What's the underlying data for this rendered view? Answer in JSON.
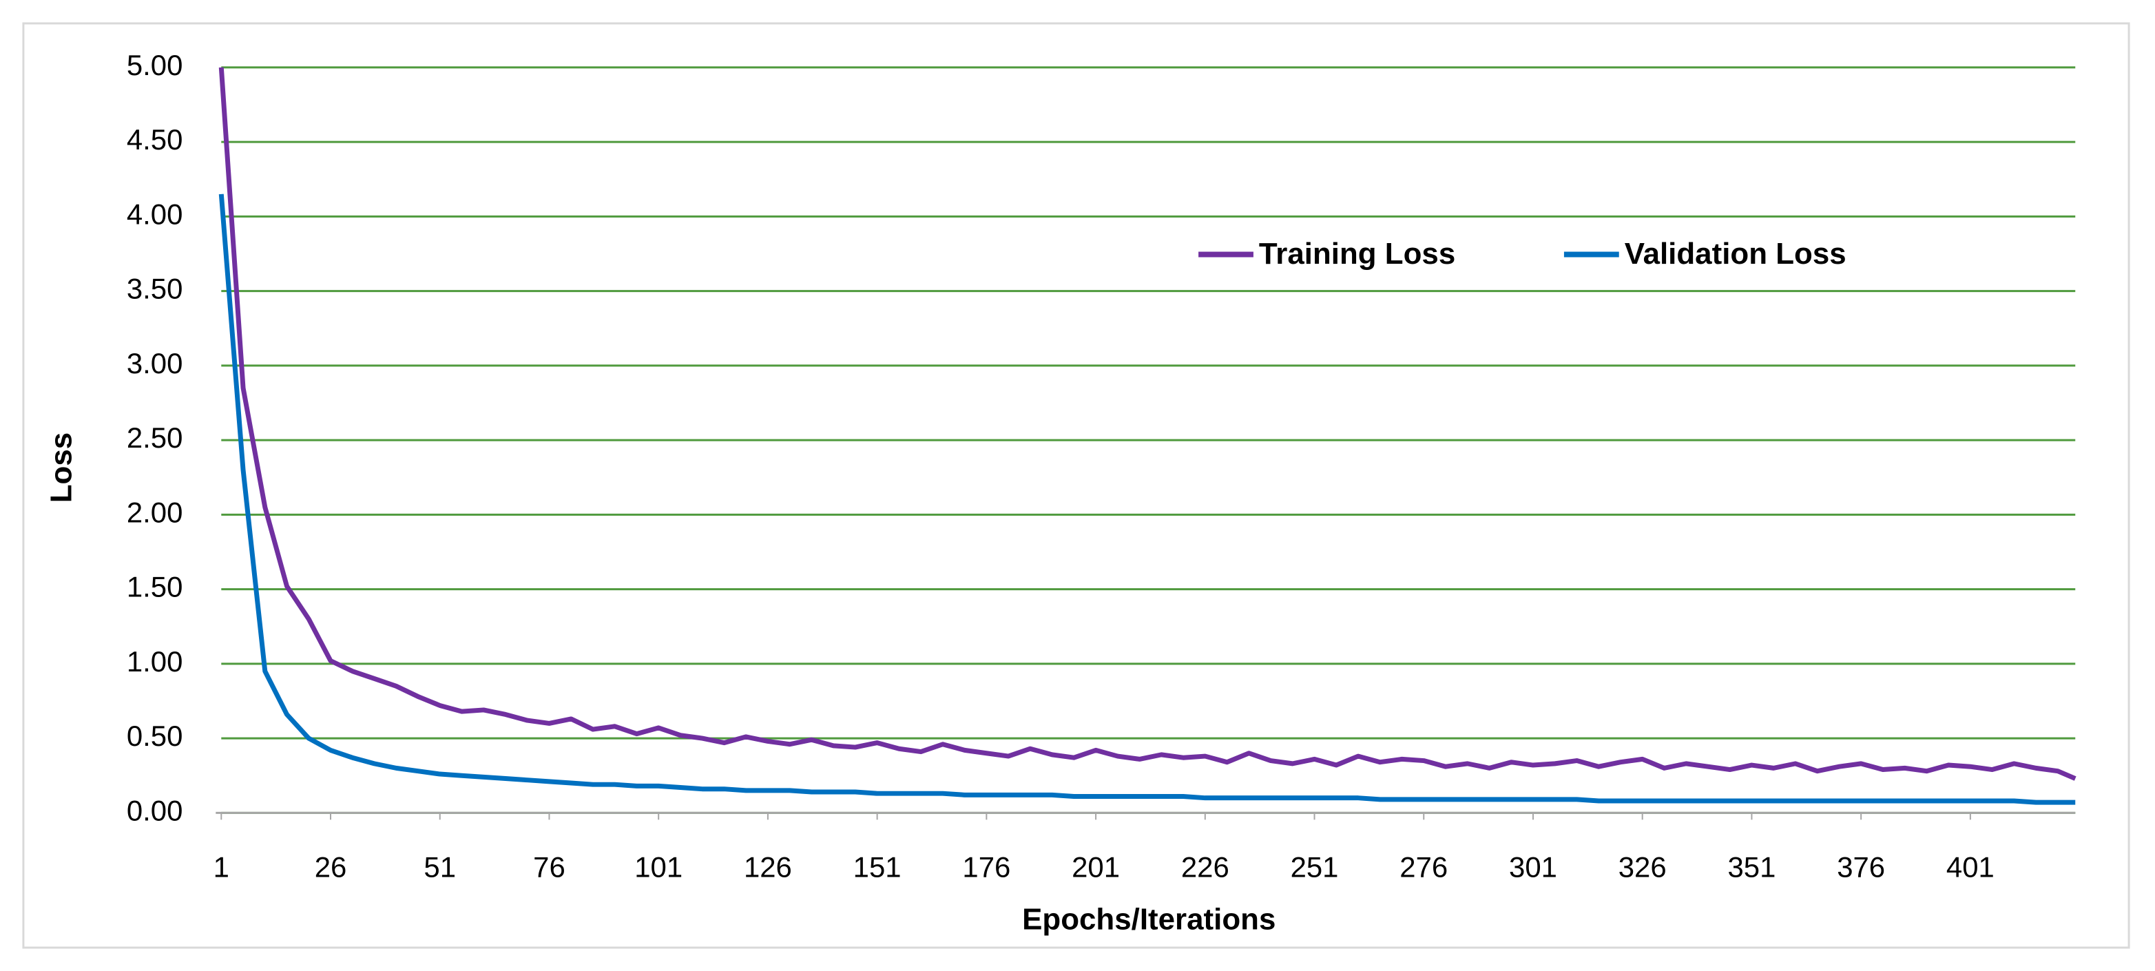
{
  "chart_data": {
    "type": "line",
    "xlabel": "Epochs/Iterations",
    "ylabel": "Loss",
    "x": [
      1,
      6,
      11,
      16,
      21,
      26,
      31,
      36,
      41,
      46,
      51,
      56,
      61,
      66,
      71,
      76,
      81,
      86,
      91,
      96,
      101,
      106,
      111,
      116,
      121,
      126,
      131,
      136,
      141,
      146,
      151,
      156,
      161,
      166,
      171,
      176,
      181,
      186,
      191,
      196,
      201,
      206,
      211,
      216,
      221,
      226,
      231,
      236,
      241,
      246,
      251,
      256,
      261,
      266,
      271,
      276,
      281,
      286,
      291,
      296,
      301,
      306,
      311,
      316,
      321,
      326,
      331,
      336,
      341,
      346,
      351,
      356,
      361,
      366,
      371,
      376,
      381,
      386,
      391,
      396,
      401,
      406,
      411,
      416,
      421,
      425
    ],
    "series": [
      {
        "name": "Training Loss",
        "color": "#7030a0",
        "values": [
          5.0,
          2.85,
          2.05,
          1.52,
          1.3,
          1.02,
          0.95,
          0.9,
          0.85,
          0.78,
          0.72,
          0.68,
          0.69,
          0.66,
          0.62,
          0.6,
          0.63,
          0.56,
          0.58,
          0.53,
          0.57,
          0.52,
          0.5,
          0.47,
          0.51,
          0.48,
          0.46,
          0.49,
          0.45,
          0.44,
          0.47,
          0.43,
          0.41,
          0.46,
          0.42,
          0.4,
          0.38,
          0.43,
          0.39,
          0.37,
          0.42,
          0.38,
          0.36,
          0.39,
          0.37,
          0.38,
          0.34,
          0.4,
          0.35,
          0.33,
          0.36,
          0.32,
          0.38,
          0.34,
          0.36,
          0.35,
          0.31,
          0.33,
          0.3,
          0.34,
          0.32,
          0.33,
          0.35,
          0.31,
          0.34,
          0.36,
          0.3,
          0.33,
          0.31,
          0.29,
          0.32,
          0.3,
          0.33,
          0.28,
          0.31,
          0.33,
          0.29,
          0.3,
          0.28,
          0.32,
          0.31,
          0.29,
          0.33,
          0.3,
          0.28,
          0.23
        ]
      },
      {
        "name": "Validation Loss",
        "color": "#0070c0",
        "values": [
          4.15,
          2.3,
          0.95,
          0.66,
          0.5,
          0.42,
          0.37,
          0.33,
          0.3,
          0.28,
          0.26,
          0.25,
          0.24,
          0.23,
          0.22,
          0.21,
          0.2,
          0.19,
          0.19,
          0.18,
          0.18,
          0.17,
          0.16,
          0.16,
          0.15,
          0.15,
          0.15,
          0.14,
          0.14,
          0.14,
          0.13,
          0.13,
          0.13,
          0.13,
          0.12,
          0.12,
          0.12,
          0.12,
          0.12,
          0.11,
          0.11,
          0.11,
          0.11,
          0.11,
          0.11,
          0.1,
          0.1,
          0.1,
          0.1,
          0.1,
          0.1,
          0.1,
          0.1,
          0.09,
          0.09,
          0.09,
          0.09,
          0.09,
          0.09,
          0.09,
          0.09,
          0.09,
          0.09,
          0.08,
          0.08,
          0.08,
          0.08,
          0.08,
          0.08,
          0.08,
          0.08,
          0.08,
          0.08,
          0.08,
          0.08,
          0.08,
          0.08,
          0.08,
          0.08,
          0.08,
          0.08,
          0.08,
          0.08,
          0.07,
          0.07,
          0.07
        ]
      }
    ],
    "xlim": [
      1,
      425
    ],
    "xticks": [
      1,
      26,
      51,
      76,
      101,
      126,
      151,
      176,
      201,
      226,
      251,
      276,
      301,
      326,
      351,
      376,
      401
    ],
    "ylim": [
      0,
      5
    ],
    "yticks": [
      {
        "value": 0,
        "label": "0.00"
      },
      {
        "value": 0.5,
        "label": "0.50"
      },
      {
        "value": 1,
        "label": "1.00"
      },
      {
        "value": 1.5,
        "label": "1.50"
      },
      {
        "value": 2,
        "label": "2.00"
      },
      {
        "value": 2.5,
        "label": "2.50"
      },
      {
        "value": 3,
        "label": "3.00"
      },
      {
        "value": 3.5,
        "label": "3.50"
      },
      {
        "value": 4,
        "label": "4.00"
      },
      {
        "value": 4.5,
        "label": "4.50"
      },
      {
        "value": 5,
        "label": "5.00"
      }
    ],
    "grid": true,
    "grid_color": "#4f9a3d"
  }
}
